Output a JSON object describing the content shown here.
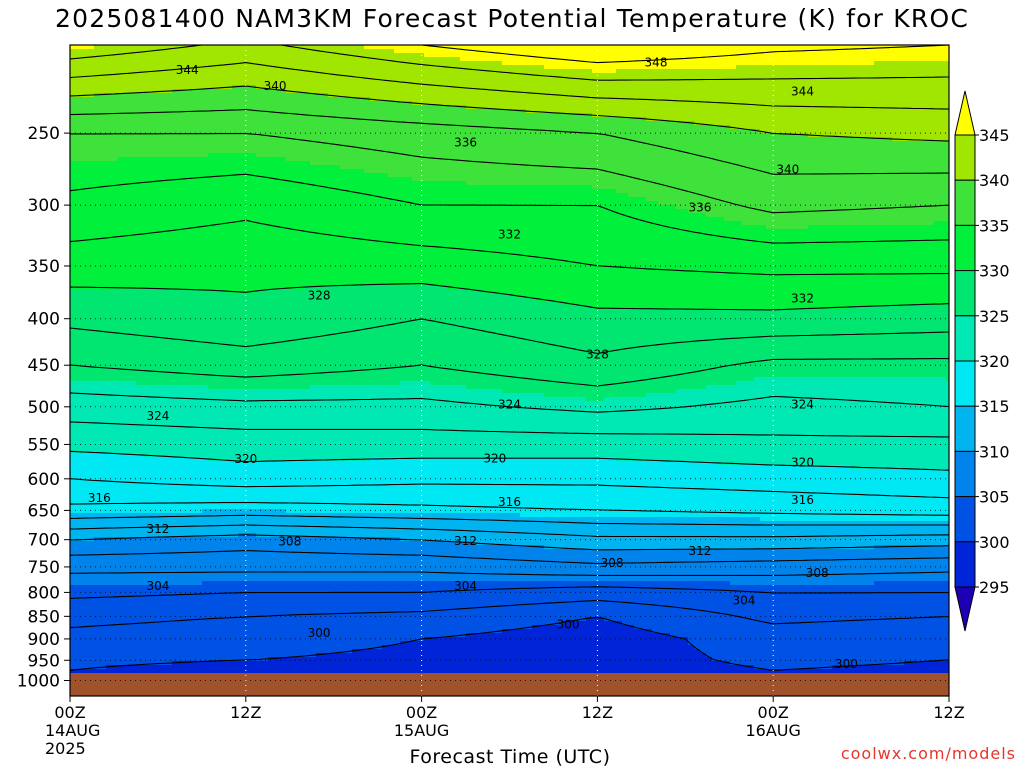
{
  "chart_data": {
    "type": "heatmap",
    "title": "2025081400 NAM3KM Forecast Potential Temperature (K) for KROC",
    "xlabel": "Forecast Time (UTC)",
    "ylabel": "",
    "y_scale": "log",
    "ylim": [
      1040,
      200
    ],
    "y_ticks": [
      250,
      300,
      350,
      400,
      450,
      500,
      550,
      600,
      650,
      700,
      750,
      800,
      850,
      900,
      950,
      1000
    ],
    "x_ticks": [
      {
        "hour": 0,
        "lines": [
          "00Z",
          "14AUG",
          "2025"
        ]
      },
      {
        "hour": 12,
        "lines": [
          "12Z"
        ]
      },
      {
        "hour": 24,
        "lines": [
          "00Z",
          "15AUG"
        ]
      },
      {
        "hour": 36,
        "lines": [
          "12Z"
        ]
      },
      {
        "hour": 48,
        "lines": [
          "00Z",
          "16AUG"
        ]
      },
      {
        "hour": 60,
        "lines": [
          "12Z"
        ]
      }
    ],
    "xlim_hours": [
      0,
      60
    ],
    "grid": true,
    "colorbar": {
      "levels": [
        295,
        300,
        305,
        310,
        315,
        320,
        325,
        330,
        335,
        340,
        345
      ],
      "labels": [
        "345",
        "340",
        "335",
        "330",
        "325",
        "320",
        "315",
        "310",
        "305",
        "300",
        "295"
      ],
      "colors": [
        "#1e00b4",
        "#0024d8",
        "#0052e4",
        "#0084ec",
        "#00b4f0",
        "#00e8f4",
        "#00e8b4",
        "#00e670",
        "#00f03c",
        "#3ee23a",
        "#a0e600",
        "#ffff00"
      ]
    },
    "hours": [
      0,
      12,
      24,
      36,
      48,
      60
    ],
    "pressure_levels": [
      1000,
      950,
      900,
      850,
      800,
      750,
      700,
      650,
      600,
      550,
      500,
      450,
      400,
      350,
      300,
      250,
      200
    ],
    "theta_K": [
      [
        299.5,
        298.0,
        298.5,
        298.5,
        299.5,
        299.0
      ],
      [
        300.5,
        300.0,
        299.5,
        299.0,
        300.5,
        300.0
      ],
      [
        301.5,
        301.0,
        300.0,
        299.0,
        301.0,
        300.5
      ],
      [
        302.5,
        302.0,
        301.5,
        300.0,
        302.5,
        302.0
      ],
      [
        304.5,
        304.0,
        304.0,
        303.0,
        304.0,
        304.0
      ],
      [
        306.5,
        306.5,
        306.5,
        307.5,
        307.0,
        306.5
      ],
      [
        310.0,
        309.0,
        310.0,
        311.5,
        311.5,
        311.0
      ],
      [
        315.5,
        315.0,
        315.5,
        316.0,
        316.5,
        317.0
      ],
      [
        318.0,
        319.0,
        318.5,
        318.5,
        319.0,
        319.5
      ],
      [
        320.5,
        321.0,
        321.0,
        321.0,
        321.5,
        321.5
      ],
      [
        323.0,
        323.5,
        323.5,
        324.5,
        323.5,
        324.0
      ],
      [
        326.0,
        327.0,
        326.0,
        327.5,
        325.5,
        325.5
      ],
      [
        328.5,
        329.5,
        328.0,
        329.5,
        329.5,
        329.0
      ],
      [
        331.0,
        330.5,
        331.0,
        332.0,
        332.5,
        332.5
      ],
      [
        333.5,
        332.5,
        334.0,
        334.0,
        336.5,
        336.0
      ],
      [
        336.0,
        336.0,
        337.0,
        338.0,
        340.0,
        340.5
      ],
      [
        345.5,
        343.5,
        346.0,
        348.0,
        346.5,
        346.0
      ]
    ],
    "contour_labels": [
      {
        "text": "344",
        "hour": 8,
        "p": 213
      },
      {
        "text": "348",
        "hour": 40,
        "p": 209
      },
      {
        "text": "340",
        "hour": 14,
        "p": 222
      },
      {
        "text": "344",
        "hour": 50,
        "p": 225
      },
      {
        "text": "336",
        "hour": 27,
        "p": 256
      },
      {
        "text": "340",
        "hour": 49,
        "p": 274
      },
      {
        "text": "336",
        "hour": 43,
        "p": 302
      },
      {
        "text": "332",
        "hour": 30,
        "p": 323
      },
      {
        "text": "328",
        "hour": 17,
        "p": 377
      },
      {
        "text": "332",
        "hour": 50,
        "p": 380
      },
      {
        "text": "328",
        "hour": 36,
        "p": 438
      },
      {
        "text": "324",
        "hour": 6,
        "p": 512
      },
      {
        "text": "324",
        "hour": 30,
        "p": 497
      },
      {
        "text": "324",
        "hour": 50,
        "p": 497
      },
      {
        "text": "320",
        "hour": 12,
        "p": 571
      },
      {
        "text": "320",
        "hour": 29,
        "p": 570
      },
      {
        "text": "320",
        "hour": 50,
        "p": 576
      },
      {
        "text": "316",
        "hour": 2,
        "p": 630
      },
      {
        "text": "316",
        "hour": 30,
        "p": 636
      },
      {
        "text": "316",
        "hour": 50,
        "p": 633
      },
      {
        "text": "312",
        "hour": 6,
        "p": 681
      },
      {
        "text": "308",
        "hour": 15,
        "p": 703
      },
      {
        "text": "312",
        "hour": 27,
        "p": 702
      },
      {
        "text": "312",
        "hour": 43,
        "p": 720
      },
      {
        "text": "308",
        "hour": 37,
        "p": 743
      },
      {
        "text": "308",
        "hour": 51,
        "p": 762
      },
      {
        "text": "304",
        "hour": 6,
        "p": 787
      },
      {
        "text": "304",
        "hour": 27,
        "p": 787
      },
      {
        "text": "304",
        "hour": 46,
        "p": 817
      },
      {
        "text": "300",
        "hour": 17,
        "p": 887
      },
      {
        "text": "300",
        "hour": 34,
        "p": 868
      },
      {
        "text": "300",
        "hour": 53,
        "p": 959
      }
    ]
  },
  "credit": "coolwx.com/models"
}
